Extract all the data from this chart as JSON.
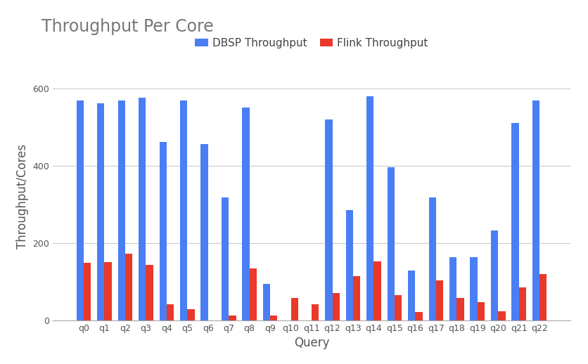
{
  "title": "Throughput Per Core",
  "xlabel": "Query",
  "ylabel": "Throughput/Cores",
  "categories": [
    "q0",
    "q1",
    "q2",
    "q3",
    "q4",
    "q5",
    "q6",
    "q7",
    "q8",
    "q9",
    "q10",
    "q11",
    "q12",
    "q13",
    "q14",
    "q15",
    "q16",
    "q17",
    "q18",
    "q19",
    "q20",
    "q21",
    "q22"
  ],
  "dbsp": [
    568,
    562,
    568,
    575,
    462,
    568,
    456,
    318,
    550,
    95,
    0,
    0,
    520,
    285,
    580,
    395,
    128,
    318,
    163,
    163,
    232,
    510,
    568
  ],
  "flink": [
    148,
    150,
    172,
    143,
    42,
    28,
    0,
    12,
    135,
    12,
    58,
    42,
    70,
    115,
    153,
    65,
    22,
    103,
    57,
    47,
    23,
    85,
    120
  ],
  "dbsp_color": "#4a7ef5",
  "flink_color": "#e8392a",
  "background_color": "#ffffff",
  "grid_color": "#cccccc",
  "title_color": "#777777",
  "axis_label_color": "#555555",
  "tick_color": "#555555",
  "legend_labels": [
    "DBSP Throughput",
    "Flink Throughput"
  ],
  "ylim": [
    0,
    640
  ],
  "yticks": [
    0,
    200,
    400,
    600
  ],
  "bar_width": 0.35,
  "title_fontsize": 17,
  "axis_label_fontsize": 12,
  "tick_fontsize": 9,
  "legend_fontsize": 11
}
